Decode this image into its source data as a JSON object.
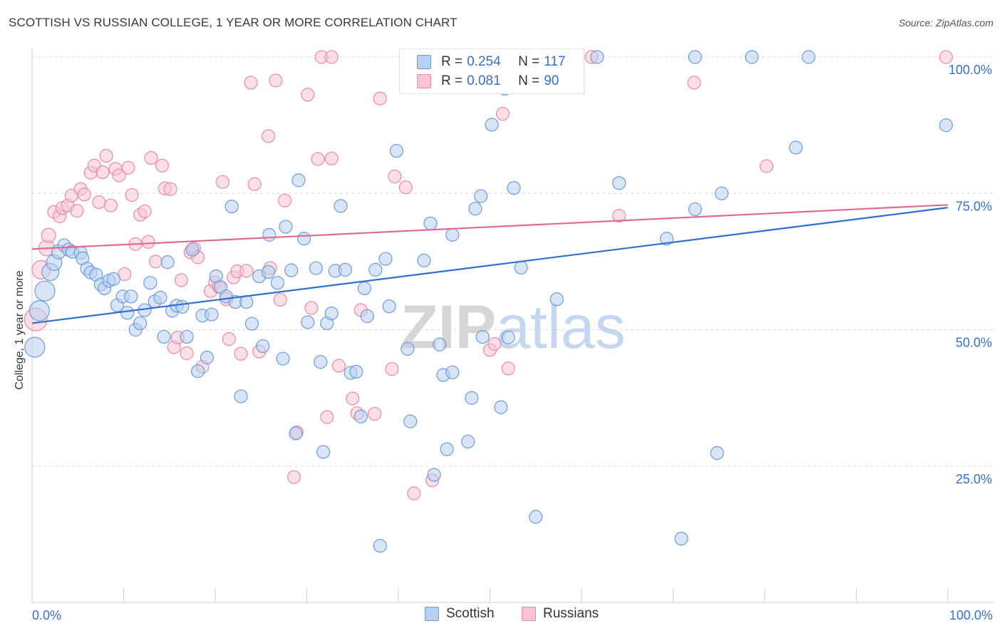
{
  "title": "SCOTTISH VS RUSSIAN COLLEGE, 1 YEAR OR MORE CORRELATION CHART",
  "source": "Source: ZipAtlas.com",
  "watermark": "ZIPatlas",
  "colors": {
    "scottish_fill": "#b8d0f0",
    "scottish_stroke": "#6f9bd8",
    "scottish_line": "#2f6fd0",
    "russian_fill": "#f8c4d4",
    "russian_stroke": "#e88aa8",
    "russian_line": "#e06a92",
    "axis_text": "#3a6fc8",
    "grid": "#d8d8d8"
  },
  "stats": {
    "scottish": {
      "r_label": "R =",
      "r_value": "0.254",
      "n_label": "N =",
      "n_value": "117"
    },
    "russian": {
      "r_label": "R =",
      "r_value": "0.081",
      "n_label": "N =",
      "n_value": "90"
    }
  },
  "legend": {
    "scottish": "Scottish",
    "russian": "Russians"
  },
  "chart_data": {
    "type": "scatter",
    "title": "SCOTTISH VS RUSSIAN COLLEGE, 1 YEAR OR MORE CORRELATION CHART",
    "xlabel": "",
    "ylabel": "College, 1 year or more",
    "xlim": [
      0,
      100
    ],
    "ylim": [
      0,
      100
    ],
    "x_tick_labels": [
      "0.0%",
      "100.0%"
    ],
    "y_tick_values": [
      25,
      50,
      75,
      100
    ],
    "y_tick_labels": [
      "25.0%",
      "50.0%",
      "75.0%",
      "100.0%"
    ],
    "grid": true,
    "legend_position": "bottom-center",
    "series": [
      {
        "name": "Scottish",
        "trend": {
          "x": [
            0,
            100
          ],
          "y": [
            51.2,
            72.4
          ]
        },
        "points": [
          [
            0.3,
            46.8,
            14
          ],
          [
            0.8,
            53.5,
            14
          ],
          [
            1.4,
            57.1,
            14
          ],
          [
            2.0,
            60.6,
            12
          ],
          [
            2.4,
            62.3,
            11
          ],
          [
            2.9,
            64.3,
            10
          ],
          [
            3.5,
            65.5,
            9
          ],
          [
            4.0,
            64.7,
            9
          ],
          [
            4.4,
            64.3,
            9
          ],
          [
            5.3,
            64.1,
            9
          ],
          [
            5.5,
            63.1,
            9
          ],
          [
            6.0,
            61.2,
            9
          ],
          [
            6.4,
            60.5,
            9
          ],
          [
            7.0,
            60.1,
            9
          ],
          [
            7.5,
            58.3,
            9
          ],
          [
            7.9,
            57.6,
            9
          ],
          [
            8.4,
            59.0,
            9
          ],
          [
            8.9,
            59.3,
            9
          ],
          [
            9.3,
            54.5,
            9
          ],
          [
            9.9,
            56.1,
            9
          ],
          [
            10.4,
            53.1,
            9
          ],
          [
            10.8,
            56.1,
            9
          ],
          [
            11.3,
            50.0,
            9
          ],
          [
            11.8,
            51.2,
            9
          ],
          [
            12.3,
            53.6,
            9
          ],
          [
            12.9,
            58.6,
            9
          ],
          [
            13.4,
            55.2,
            9
          ],
          [
            14.0,
            55.9,
            9
          ],
          [
            14.4,
            48.7,
            9
          ],
          [
            14.8,
            62.4,
            9
          ],
          [
            15.3,
            53.5,
            9
          ],
          [
            15.8,
            54.4,
            9
          ],
          [
            16.4,
            54.2,
            9
          ],
          [
            16.9,
            48.7,
            9
          ],
          [
            17.5,
            64.7,
            9
          ],
          [
            18.1,
            42.4,
            9
          ],
          [
            18.6,
            52.6,
            9
          ],
          [
            19.1,
            44.9,
            9
          ],
          [
            19.6,
            52.8,
            9
          ],
          [
            20.1,
            59.8,
            9
          ],
          [
            20.6,
            57.8,
            9
          ],
          [
            21.2,
            56.1,
            9
          ],
          [
            21.8,
            72.6,
            9
          ],
          [
            22.2,
            55.1,
            9
          ],
          [
            22.8,
            37.8,
            9
          ],
          [
            23.4,
            55.1,
            9
          ],
          [
            24.0,
            51.1,
            9
          ],
          [
            24.8,
            59.8,
            9
          ],
          [
            25.2,
            47.0,
            9
          ],
          [
            25.8,
            60.6,
            9
          ],
          [
            25.9,
            67.4,
            9
          ],
          [
            26.8,
            58.6,
            9
          ],
          [
            27.4,
            44.7,
            9
          ],
          [
            27.7,
            68.9,
            9
          ],
          [
            28.3,
            60.9,
            9
          ],
          [
            28.8,
            31.0,
            9
          ],
          [
            29.1,
            77.4,
            9
          ],
          [
            29.7,
            66.7,
            9
          ],
          [
            30.1,
            51.4,
            9
          ],
          [
            31.0,
            61.3,
            9
          ],
          [
            31.5,
            44.1,
            9
          ],
          [
            31.8,
            27.6,
            9
          ],
          [
            32.2,
            51.2,
            9
          ],
          [
            32.7,
            53.0,
            9
          ],
          [
            33.1,
            60.8,
            9
          ],
          [
            33.7,
            72.7,
            9
          ],
          [
            34.2,
            61.0,
            9
          ],
          [
            34.8,
            42.1,
            9
          ],
          [
            35.4,
            42.3,
            9
          ],
          [
            35.9,
            34.1,
            9
          ],
          [
            36.3,
            57.6,
            9
          ],
          [
            36.6,
            52.5,
            9
          ],
          [
            37.5,
            61.0,
            9
          ],
          [
            38.0,
            10.4,
            9
          ],
          [
            38.6,
            63.0,
            9
          ],
          [
            39.0,
            54.3,
            9
          ],
          [
            39.8,
            82.8,
            9
          ],
          [
            41.0,
            46.5,
            9
          ],
          [
            41.3,
            33.2,
            9
          ],
          [
            42.3,
            94.5,
            9
          ],
          [
            42.8,
            62.7,
            9
          ],
          [
            43.5,
            69.5,
            9
          ],
          [
            43.9,
            23.4,
            9
          ],
          [
            44.5,
            47.3,
            9
          ],
          [
            44.9,
            41.7,
            9
          ],
          [
            45.3,
            28.1,
            9
          ],
          [
            45.9,
            42.2,
            9
          ],
          [
            45.9,
            67.4,
            9
          ],
          [
            47.6,
            29.5,
            9
          ],
          [
            48.0,
            37.5,
            9
          ],
          [
            48.4,
            72.2,
            9
          ],
          [
            49.0,
            74.5,
            9
          ],
          [
            49.2,
            48.7,
            9
          ],
          [
            50.2,
            87.6,
            9
          ],
          [
            51.6,
            94.2,
            9
          ],
          [
            51.2,
            35.8,
            9
          ],
          [
            52.0,
            48.6,
            9
          ],
          [
            52.6,
            76.0,
            9
          ],
          [
            53.4,
            61.4,
            9
          ],
          [
            55.0,
            15.7,
            9
          ],
          [
            57.3,
            55.6,
            9
          ],
          [
            59.0,
            100,
            9
          ],
          [
            61.7,
            100,
            9
          ],
          [
            64.1,
            76.9,
            9
          ],
          [
            69.3,
            66.7,
            9
          ],
          [
            70.9,
            11.7,
            9
          ],
          [
            72.4,
            100,
            9
          ],
          [
            72.4,
            72.1,
            9
          ],
          [
            75.3,
            75.0,
            9
          ],
          [
            74.8,
            27.4,
            9
          ],
          [
            78.6,
            100,
            9
          ],
          [
            83.4,
            83.4,
            9
          ],
          [
            84.8,
            100,
            9
          ],
          [
            99.8,
            87.5,
            9
          ]
        ]
      },
      {
        "name": "Russians",
        "trend": {
          "x": [
            0,
            100
          ],
          "y": [
            64.8,
            72.9
          ]
        },
        "points": [
          [
            0.4,
            51.9,
            16
          ],
          [
            1.0,
            61.0,
            13
          ],
          [
            1.6,
            65.0,
            11
          ],
          [
            1.8,
            67.3,
            10
          ],
          [
            2.4,
            71.6,
            9
          ],
          [
            3.0,
            70.8,
            9
          ],
          [
            3.3,
            72.3,
            9
          ],
          [
            3.9,
            72.8,
            9
          ],
          [
            4.3,
            74.6,
            9
          ],
          [
            4.9,
            71.8,
            9
          ],
          [
            5.3,
            75.8,
            9
          ],
          [
            5.7,
            74.8,
            9
          ],
          [
            6.4,
            78.8,
            9
          ],
          [
            6.8,
            80.1,
            9
          ],
          [
            7.3,
            73.4,
            9
          ],
          [
            7.7,
            78.9,
            9
          ],
          [
            8.1,
            81.9,
            9
          ],
          [
            8.6,
            72.8,
            9
          ],
          [
            9.1,
            79.5,
            9
          ],
          [
            9.5,
            78.3,
            9
          ],
          [
            10.1,
            60.2,
            9
          ],
          [
            10.5,
            79.7,
            9
          ],
          [
            10.9,
            74.7,
            9
          ],
          [
            11.3,
            65.7,
            9
          ],
          [
            11.8,
            71.1,
            9
          ],
          [
            12.3,
            71.7,
            9
          ],
          [
            12.7,
            66.1,
            9
          ],
          [
            13.0,
            81.5,
            9
          ],
          [
            13.5,
            62.5,
            9
          ],
          [
            14.2,
            80.1,
            9
          ],
          [
            14.5,
            75.9,
            9
          ],
          [
            15.1,
            75.8,
            9
          ],
          [
            15.5,
            46.8,
            9
          ],
          [
            15.9,
            48.6,
            9
          ],
          [
            16.3,
            59.1,
            9
          ],
          [
            16.9,
            45.7,
            9
          ],
          [
            17.3,
            64.2,
            9
          ],
          [
            17.7,
            64.9,
            9
          ],
          [
            18.1,
            63.3,
            9
          ],
          [
            18.6,
            43.2,
            9
          ],
          [
            19.5,
            57.1,
            9
          ],
          [
            20.0,
            58.7,
            9
          ],
          [
            20.4,
            57.9,
            9
          ],
          [
            20.8,
            77.1,
            9
          ],
          [
            21.2,
            55.6,
            9
          ],
          [
            21.5,
            48.3,
            9
          ],
          [
            22.0,
            59.6,
            9
          ],
          [
            22.4,
            60.7,
            9
          ],
          [
            22.8,
            45.6,
            9
          ],
          [
            23.4,
            60.8,
            9
          ],
          [
            23.9,
            95.3,
            9
          ],
          [
            24.3,
            76.7,
            9
          ],
          [
            24.8,
            46.0,
            9
          ],
          [
            25.8,
            85.5,
            9
          ],
          [
            26.0,
            61.3,
            9
          ],
          [
            26.6,
            95.7,
            9
          ],
          [
            27.1,
            55.5,
            9
          ],
          [
            27.6,
            73.7,
            9
          ],
          [
            28.6,
            23.0,
            9
          ],
          [
            28.9,
            31.2,
            9
          ],
          [
            30.1,
            93.1,
            9
          ],
          [
            30.5,
            54.0,
            9
          ],
          [
            31.2,
            81.3,
            9
          ],
          [
            31.6,
            100,
            9
          ],
          [
            32.2,
            34.0,
            9
          ],
          [
            32.7,
            81.4,
            9
          ],
          [
            32.7,
            100,
            9
          ],
          [
            33.5,
            43.4,
            9
          ],
          [
            35.0,
            37.4,
            9
          ],
          [
            35.5,
            34.7,
            9
          ],
          [
            35.9,
            53.6,
            9
          ],
          [
            37.4,
            34.6,
            9
          ],
          [
            38.0,
            92.4,
            9
          ],
          [
            39.3,
            42.8,
            9
          ],
          [
            39.6,
            78.1,
            9
          ],
          [
            40.8,
            76.1,
            9
          ],
          [
            41.7,
            20.0,
            9
          ],
          [
            43.7,
            22.4,
            9
          ],
          [
            50.0,
            46.3,
            9
          ],
          [
            50.5,
            47.4,
            9
          ],
          [
            51.4,
            89.6,
            9
          ],
          [
            52.0,
            42.9,
            9
          ],
          [
            59.1,
            100,
            9
          ],
          [
            61.1,
            100,
            9
          ],
          [
            64.1,
            70.9,
            9
          ],
          [
            72.3,
            95.3,
            9
          ],
          [
            80.2,
            80.0,
            9
          ],
          [
            99.8,
            100,
            9
          ]
        ]
      }
    ]
  }
}
